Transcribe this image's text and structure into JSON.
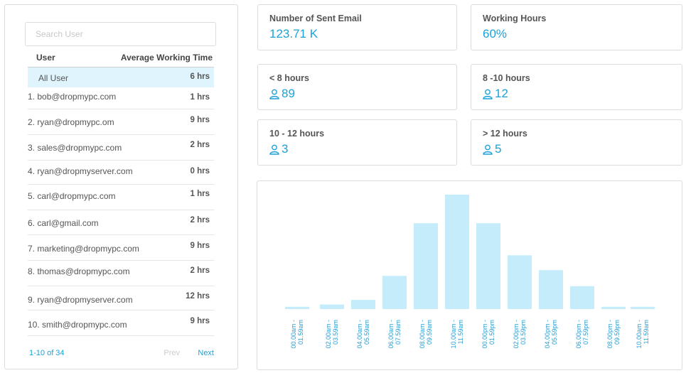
{
  "search": {
    "placeholder": "Search User"
  },
  "table": {
    "header_user": "User",
    "header_time": "Average Working Time",
    "rows": [
      {
        "name": "All User",
        "time": "6 hrs"
      },
      {
        "name": "1. bob@dropmypc.com",
        "time": "1 hrs"
      },
      {
        "name": "2. ryan@dropmypc.om",
        "time": "9 hrs"
      },
      {
        "name": "3. sales@dropmypc.com",
        "time": "2 hrs"
      },
      {
        "name": "4. ryan@dropmyserver.com",
        "time": "0 hrs"
      },
      {
        "name": "5. carl@dropmypc.com",
        "time": "1 hrs"
      },
      {
        "name": "6. carl@gmail.com",
        "time": "2 hrs"
      },
      {
        "name": "7. marketing@dropmypc.com",
        "time": "9 hrs"
      },
      {
        "name": "8. thomas@dropmypc.com",
        "time": "2 hrs"
      },
      {
        "name": "9. ryan@dropmyserver.com",
        "time": "12 hrs"
      },
      {
        "name": "10. smith@dropmypc.com",
        "time": "9 hrs"
      }
    ]
  },
  "pager": {
    "range": "1-10 of 34",
    "prev": "Prev",
    "next": "Next"
  },
  "stats": {
    "sent_email": {
      "label": "Number of Sent Email",
      "value": "123.71 K"
    },
    "working_hours": {
      "label": "Working Hours",
      "value": "60%"
    },
    "lt8": {
      "label": "< 8 hours",
      "value": "89"
    },
    "h8_10": {
      "label": "8 -10 hours",
      "value": "12"
    },
    "h10_12": {
      "label": "10 - 12 hours",
      "value": "3"
    },
    "gt12": {
      "label": "> 12 hours",
      "value": "5"
    }
  },
  "colors": {
    "accent": "#1aa2d8",
    "bar": "#c4ecfb",
    "selected_row": "#dff4fc"
  },
  "chart_data": {
    "type": "bar",
    "categories": [
      "00.00am - 01.59am",
      "02.00am - 03.59am",
      "04.00am - 05.59am",
      "06.00am - 07.59am",
      "08.00am - 09.59am",
      "10.00am - 11.59am",
      "00.00pm - 01.59pm",
      "02.00pm - 03.59pm",
      "04.00pm - 05.59pm",
      "06.00pm - 07.59pm",
      "08.00pm - 09.59pm",
      "10.00am - 11.59am"
    ],
    "values": [
      2,
      4,
      8,
      29,
      75,
      100,
      75,
      47,
      34,
      20,
      2,
      2
    ],
    "ylim": [
      0,
      100
    ],
    "grid": false,
    "legend": "none"
  }
}
